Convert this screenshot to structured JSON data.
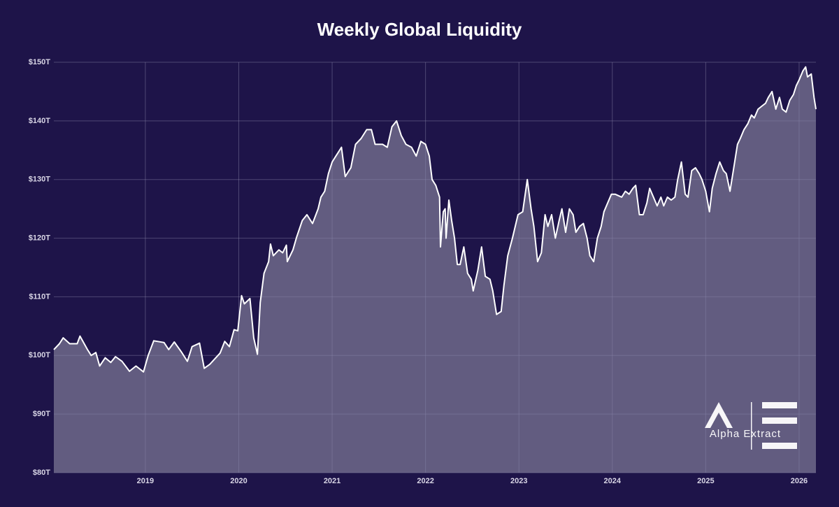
{
  "chart_data": {
    "type": "area",
    "title": "Weekly Global Liquidity",
    "watermark": "Alpha Extract",
    "line_color": "#ffffff",
    "fill_color": "#625c80",
    "grid": true,
    "xlim": [
      2018.02,
      2026.18
    ],
    "xticks": [
      2019,
      2020,
      2021,
      2022,
      2023,
      2024,
      2025,
      2026
    ],
    "ylim": [
      80,
      150
    ],
    "yticks": [
      {
        "value": 80,
        "label": "$80T"
      },
      {
        "value": 90,
        "label": "$90T"
      },
      {
        "value": 100,
        "label": "$100T"
      },
      {
        "value": 110,
        "label": "$110T"
      },
      {
        "value": 120,
        "label": "$120T"
      },
      {
        "value": 130,
        "label": "$130T"
      },
      {
        "value": 140,
        "label": "$140T"
      },
      {
        "value": 150,
        "label": "$150T"
      }
    ],
    "x": [
      2018.02,
      2018.08,
      2018.12,
      2018.19,
      2018.27,
      2018.3,
      2018.38,
      2018.42,
      2018.47,
      2018.51,
      2018.57,
      2018.63,
      2018.68,
      2018.75,
      2018.83,
      2018.9,
      2018.98,
      2019.03,
      2019.09,
      2019.2,
      2019.25,
      2019.31,
      2019.39,
      2019.45,
      2019.5,
      2019.58,
      2019.63,
      2019.69,
      2019.8,
      2019.85,
      2019.9,
      2019.95,
      2019.99,
      2020.03,
      2020.06,
      2020.12,
      2020.16,
      2020.2,
      2020.23,
      2020.27,
      2020.32,
      2020.34,
      2020.37,
      2020.43,
      2020.47,
      2020.51,
      2020.52,
      2020.58,
      2020.62,
      2020.68,
      2020.73,
      2020.79,
      2020.85,
      2020.88,
      2020.92,
      2020.96,
      2021.0,
      2021.04,
      2021.1,
      2021.14,
      2021.2,
      2021.25,
      2021.31,
      2021.37,
      2021.42,
      2021.46,
      2021.54,
      2021.59,
      2021.64,
      2021.69,
      2021.74,
      2021.79,
      2021.85,
      2021.9,
      2021.95,
      2022.0,
      2022.04,
      2022.07,
      2022.11,
      2022.15,
      2022.16,
      2022.19,
      2022.21,
      2022.22,
      2022.25,
      2022.28,
      2022.31,
      2022.34,
      2022.37,
      2022.41,
      2022.45,
      2022.49,
      2022.51,
      2022.56,
      2022.6,
      2022.64,
      2022.69,
      2022.72,
      2022.76,
      2022.81,
      2022.84,
      2022.88,
      2022.93,
      2022.99,
      2023.04,
      2023.09,
      2023.13,
      2023.16,
      2023.2,
      2023.24,
      2023.28,
      2023.31,
      2023.35,
      2023.39,
      2023.43,
      2023.46,
      2023.5,
      2023.54,
      2023.58,
      2023.61,
      2023.65,
      2023.69,
      2023.73,
      2023.76,
      2023.8,
      2023.84,
      2023.88,
      2023.91,
      2023.95,
      2023.99,
      2024.03,
      2024.1,
      2024.14,
      2024.18,
      2024.22,
      2024.25,
      2024.29,
      2024.33,
      2024.37,
      2024.4,
      2024.44,
      2024.48,
      2024.52,
      2024.55,
      2024.59,
      2024.63,
      2024.67,
      2024.7,
      2024.74,
      2024.78,
      2024.81,
      2024.85,
      2024.89,
      2024.93,
      2024.96,
      2025.0,
      2025.04,
      2025.07,
      2025.11,
      2025.15,
      2025.19,
      2025.22,
      2025.26,
      2025.3,
      2025.34,
      2025.37,
      2025.41,
      2025.45,
      2025.49,
      2025.52,
      2025.56,
      2025.6,
      2025.64,
      2025.67,
      2025.71,
      2025.75,
      2025.79,
      2025.82,
      2025.86,
      2025.9,
      2025.94,
      2025.97,
      2026.0,
      2026.04,
      2026.07,
      2026.09,
      2026.13,
      2026.16,
      2026.18
    ],
    "values": [
      101,
      102,
      103,
      102,
      102,
      103.3,
      101,
      100,
      100.5,
      98.2,
      99.6,
      98.8,
      99.8,
      99,
      97.3,
      98.2,
      97.2,
      100,
      102.5,
      102.2,
      101,
      102.3,
      100.5,
      99,
      101.5,
      102.1,
      97.8,
      98.5,
      100.4,
      102.4,
      101.5,
      104.4,
      104.2,
      110.2,
      108.8,
      109.7,
      103,
      100.2,
      109,
      114,
      116,
      119,
      117,
      118,
      117.5,
      118.8,
      116,
      118,
      120.2,
      123,
      124,
      122.5,
      125,
      127,
      128,
      131,
      133,
      134,
      135.5,
      130.5,
      132,
      136,
      137,
      138.5,
      138.5,
      136,
      136,
      135.5,
      139,
      140,
      137.5,
      136,
      135.5,
      134,
      136.5,
      136,
      134,
      130,
      129,
      127,
      118.5,
      124.5,
      125,
      120,
      126.5,
      123,
      120,
      115.5,
      115.5,
      118.5,
      114,
      113,
      111,
      114.5,
      118.5,
      113.5,
      113,
      111,
      107,
      107.5,
      112,
      117,
      120,
      124,
      124.5,
      130,
      125,
      122,
      116,
      117.5,
      124,
      122,
      124,
      120,
      123,
      125,
      121,
      125,
      124,
      121,
      122,
      122.5,
      120,
      117,
      116,
      120,
      122,
      124.5,
      126,
      127.5,
      127.5,
      127,
      128,
      127.5,
      128.5,
      129,
      124,
      124,
      126,
      128.5,
      127,
      125.5,
      127,
      125.5,
      127,
      126.5,
      127,
      130,
      133,
      127.5,
      127,
      131.5,
      132,
      131,
      130,
      128,
      124.5,
      128.5,
      131,
      133,
      131.5,
      131,
      128,
      132,
      136,
      137,
      138.5,
      139.5,
      141,
      140.5,
      142,
      142.5,
      143,
      144,
      145,
      142,
      144,
      142,
      141.5,
      143.5,
      144.5,
      146,
      147,
      148.5,
      149.2,
      147.5,
      148,
      144,
      142
    ]
  }
}
